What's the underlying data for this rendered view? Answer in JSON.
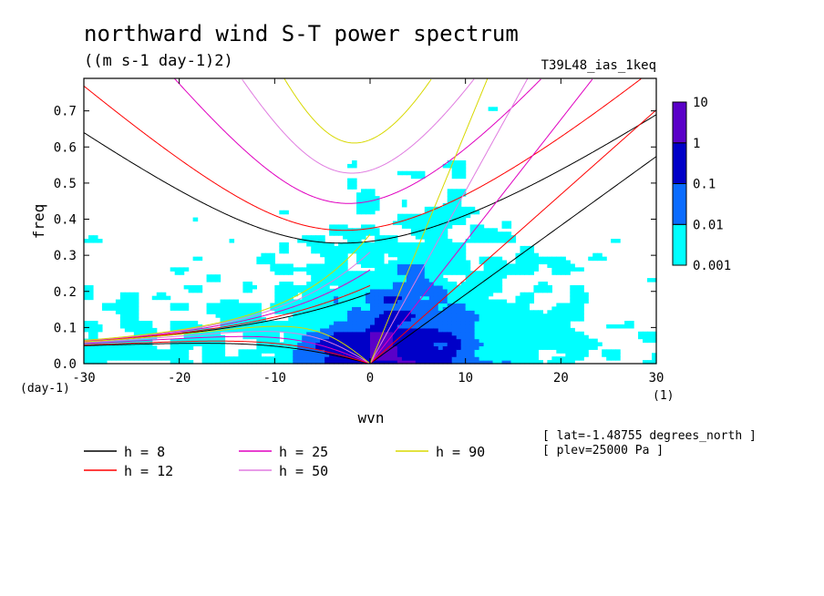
{
  "chart_data": {
    "type": "heatmap",
    "title": "northward wind S-T power spectrum",
    "subtitle": "((m s-1 day-1)2)",
    "run_label": "T39L48_ias_1keq",
    "xlabel": "wvn",
    "ylabel": "freq",
    "x_units": "(1)",
    "y_units": "(day-1)",
    "xlim": [
      -30,
      30
    ],
    "ylim": [
      0,
      0.79
    ],
    "x_ticks": [
      -30,
      -20,
      -10,
      0,
      10,
      20,
      30
    ],
    "x_tick_labels": [
      "-30",
      "-20",
      "-10",
      "0",
      "10",
      "20",
      "30"
    ],
    "y_ticks": [
      0.0,
      0.1,
      0.2,
      0.3,
      0.4,
      0.5,
      0.6,
      0.7
    ],
    "y_tick_labels": [
      "0.0",
      "0.1",
      "0.2",
      "0.3",
      "0.4",
      "0.5",
      "0.6",
      "0.7"
    ],
    "colorbar": {
      "levels": [
        0.001,
        0.01,
        0.1,
        1,
        10
      ],
      "level_labels": [
        "0.001",
        "0.01",
        "0.1",
        "1",
        "10"
      ],
      "colors": [
        "#00ffff",
        "#0a6cff",
        "#0000c8",
        "#5a00c8"
      ]
    },
    "dispersion_curves": [
      {
        "name": "h =  8",
        "h": 8,
        "color": "#000000"
      },
      {
        "name": "h = 12",
        "h": 12,
        "color": "#ff0000"
      },
      {
        "name": "h = 25",
        "h": 25,
        "color": "#e000c0"
      },
      {
        "name": "h = 50",
        "h": 50,
        "color": "#e07ce0"
      },
      {
        "name": "h = 90",
        "h": 90,
        "color": "#d8d800"
      }
    ],
    "annotations": [
      "[ lat=-1.48755 degrees_north ]",
      "[ plev=25000 Pa ]"
    ]
  }
}
